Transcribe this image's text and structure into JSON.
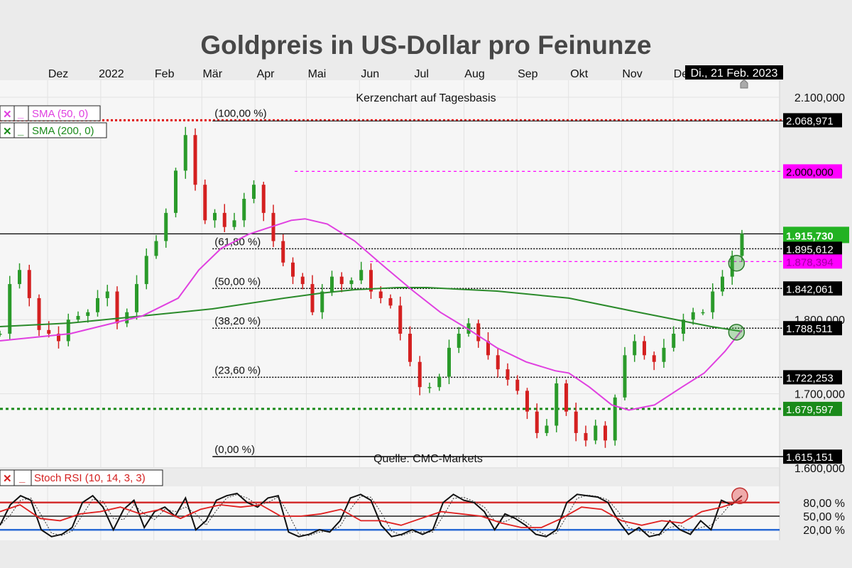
{
  "title": "Goldpreis in US-Dollar pro Feinunze",
  "subtitle": "Kerzenchart auf Tagesbasis",
  "source": "Quelle: CMC-Markets",
  "cursor_date": "Di., 21 Feb. 2023",
  "colors": {
    "up": "#2a9a2a",
    "down": "#d42020",
    "sma50": "#e040e0",
    "sma200": "#2a8a2a",
    "resistance": "#e01010",
    "support": "#1a8a1a",
    "magenta": "#ff00ff",
    "stoch_k": "#111111",
    "stoch_signal": "#e02020",
    "rsi_80": "#d43030",
    "rsi_20": "#2a6ad4"
  },
  "legend": {
    "sma50": {
      "close": "✕",
      "minimize": "_",
      "label": "SMA (50, 0)"
    },
    "sma200": {
      "close": "✕",
      "minimize": "_",
      "label": "SMA (200, 0)"
    },
    "stoch": {
      "close": "✕",
      "minimize": "_",
      "label": "Stoch RSI (10, 14, 3, 3)"
    }
  },
  "chart_data": {
    "type": "candlestick",
    "title": "Goldpreis in US-Dollar pro Feinunze",
    "subtitle": "Kerzenchart auf Tagesbasis",
    "x_range": [
      "2021-10-28",
      "2023-01-04"
    ],
    "ylim": [
      1600,
      2100
    ],
    "grid": true,
    "x_ticks": [
      {
        "label": "Dez",
        "date": "2021-12-01"
      },
      {
        "label": "2022",
        "date": "2022-01-01"
      },
      {
        "label": "Feb",
        "date": "2022-02-01"
      },
      {
        "label": "Mär",
        "date": "2022-03-01"
      },
      {
        "label": "Apr",
        "date": "2022-04-01"
      },
      {
        "label": "Mai",
        "date": "2022-05-01"
      },
      {
        "label": "Jun",
        "date": "2022-06-01"
      },
      {
        "label": "Jul",
        "date": "2022-07-01"
      },
      {
        "label": "Aug",
        "date": "2022-08-01"
      },
      {
        "label": "Sep",
        "date": "2022-09-01"
      },
      {
        "label": "Okt",
        "date": "2022-10-01"
      },
      {
        "label": "Nov",
        "date": "2022-11-01"
      },
      {
        "label": "Dez",
        "date": "2022-12-01"
      }
    ],
    "y_ticks": [
      {
        "label": "2.100,000",
        "value": 2100
      },
      {
        "label": "1.800,000",
        "value": 1800
      },
      {
        "label": "1.700,000",
        "value": 1700
      },
      {
        "label": "1.600,000",
        "value": 1600
      }
    ],
    "closes_evenly_spaced": [
      1781,
      1848,
      1867,
      1829,
      1786,
      1781,
      1771,
      1800,
      1805,
      1810,
      1829,
      1838,
      1795,
      1810,
      1848,
      1886,
      1906,
      1944,
      2001,
      2049,
      1982,
      1934,
      1944,
      1925,
      1934,
      1963,
      1982,
      1944,
      1906,
      1877,
      1858,
      1848,
      1810,
      1838,
      1858,
      1848,
      1853,
      1867,
      1838,
      1829,
      1819,
      1781,
      1743,
      1709,
      1709,
      1723,
      1762,
      1781,
      1795,
      1771,
      1752,
      1733,
      1719,
      1704,
      1676,
      1647,
      1657,
      1714,
      1676,
      1647,
      1637,
      1657,
      1637,
      1695,
      1752,
      1771,
      1752,
      1743,
      1762,
      1781,
      1800,
      1810,
      1810,
      1838,
      1858,
      1886,
      1916
    ],
    "sma50": [
      [
        "2021-10-28",
        1771.5
      ],
      [
        "2021-12-08",
        1781
      ],
      [
        "2022-01-19",
        1805
      ],
      [
        "2022-02-09",
        1829
      ],
      [
        "2022-02-21",
        1867
      ],
      [
        "2022-03-06",
        1896
      ],
      [
        "2022-03-22",
        1915
      ],
      [
        "2022-04-04",
        1925
      ],
      [
        "2022-04-16",
        1934
      ],
      [
        "2022-04-24",
        1936
      ],
      [
        "2022-05-07",
        1929
      ],
      [
        "2022-05-23",
        1906
      ],
      [
        "2022-06-09",
        1872
      ],
      [
        "2022-06-26",
        1839
      ],
      [
        "2022-07-12",
        1810
      ],
      [
        "2022-07-29",
        1786
      ],
      [
        "2022-08-14",
        1762
      ],
      [
        "2022-08-31",
        1743
      ],
      [
        "2022-09-17",
        1731
      ],
      [
        "2022-09-25",
        1728
      ],
      [
        "2022-10-07",
        1709
      ],
      [
        "2022-10-20",
        1685
      ],
      [
        "2022-10-30",
        1678
      ],
      [
        "2022-11-14",
        1685
      ],
      [
        "2022-11-30",
        1709
      ],
      [
        "2022-12-13",
        1728
      ],
      [
        "2022-12-25",
        1757
      ],
      [
        "2023-01-04",
        1786
      ]
    ],
    "sma200": [
      [
        "2021-10-28",
        1790.6
      ],
      [
        "2021-12-08",
        1795.4
      ],
      [
        "2022-01-19",
        1805
      ],
      [
        "2022-03-01",
        1814.6
      ],
      [
        "2022-04-12",
        1829
      ],
      [
        "2022-05-03",
        1835.6
      ],
      [
        "2022-05-23",
        1840.4
      ],
      [
        "2022-06-17",
        1843.3
      ],
      [
        "2022-07-04",
        1843.3
      ],
      [
        "2022-08-14",
        1838.5
      ],
      [
        "2022-09-25",
        1829
      ],
      [
        "2022-11-05",
        1809.8
      ],
      [
        "2022-11-26",
        1800.2
      ],
      [
        "2022-12-17",
        1790.6
      ],
      [
        "2023-01-04",
        1784
      ]
    ],
    "levels": [
      {
        "value": 2068.971,
        "label": "2.068,971",
        "style": "red-dotted",
        "fib": "(100,00 %)"
      },
      {
        "value": 2000,
        "label": "2.000,000",
        "style": "magenta-dashed",
        "from": "2022-04-18"
      },
      {
        "value": 1915.73,
        "label": "1.915,730",
        "style": "current-price"
      },
      {
        "value": 1895.612,
        "label": "1.895,612",
        "style": "fib",
        "fib": "(61,80 %)"
      },
      {
        "value": 1878.394,
        "label": "1.878,394",
        "style": "magenta-dashed",
        "from": "2022-06-01"
      },
      {
        "value": 1842.061,
        "label": "1.842,061",
        "style": "fib",
        "fib": "(50,00 %)"
      },
      {
        "value": 1788.511,
        "label": "1.788,511",
        "style": "fib",
        "fib": "(38,20 %)"
      },
      {
        "value": 1722.253,
        "label": "1.722,253",
        "style": "fib",
        "fib": "(23,60 %)"
      },
      {
        "value": 1679.597,
        "label": "1.679,597",
        "style": "green-dotted"
      },
      {
        "value": 1615.151,
        "label": "1.615,151",
        "style": "fib-base",
        "fib": "(0,00 %)"
      }
    ],
    "highlights": [
      {
        "date": "2022-12-31",
        "value": 1878,
        "color": "green"
      },
      {
        "date": "2022-12-31",
        "value": 1785,
        "color": "green"
      }
    ],
    "stoch_rsi": {
      "ylim": [
        0,
        100
      ],
      "levels": [
        {
          "value": 80,
          "label": "80,00 %"
        },
        {
          "value": 50,
          "label": "50,00 %"
        },
        {
          "value": 20,
          "label": "20,00 %"
        }
      ],
      "k_evenly_spaced": [
        30,
        75,
        95,
        85,
        20,
        5,
        10,
        25,
        80,
        95,
        70,
        20,
        65,
        85,
        25,
        60,
        70,
        50,
        90,
        20,
        40,
        85,
        95,
        100,
        80,
        70,
        90,
        95,
        15,
        5,
        10,
        20,
        15,
        40,
        90,
        98,
        85,
        30,
        5,
        10,
        20,
        10,
        20,
        80,
        98,
        85,
        80,
        60,
        20,
        55,
        45,
        30,
        10,
        5,
        20,
        80,
        98,
        95,
        92,
        80,
        40,
        10,
        25,
        5,
        10,
        40,
        20,
        10,
        40,
        20,
        85,
        75,
        95
      ],
      "signal_evenly_spaced": [
        60,
        75,
        45,
        40,
        55,
        60,
        70,
        55,
        65,
        45,
        65,
        75,
        70,
        75,
        50,
        50,
        55,
        65,
        40,
        40,
        30,
        45,
        60,
        55,
        50,
        35,
        25,
        25,
        45,
        70,
        65,
        40,
        30,
        40,
        35,
        60,
        70,
        85
      ],
      "highlight": {
        "value": 95,
        "color": "red"
      }
    }
  }
}
